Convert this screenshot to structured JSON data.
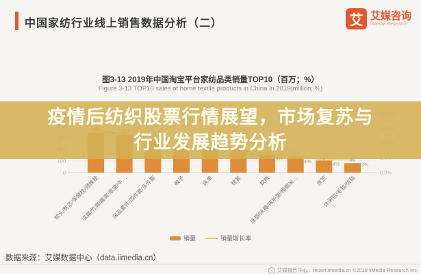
{
  "header": {
    "title": "中国家纺行业线上销售数据分析（二）",
    "accent_color": "#e4572e",
    "logo": {
      "mark": "艾",
      "name_cn": "艾媒咨询",
      "name_en": "iiMedia Research"
    }
  },
  "overlay": {
    "line1": "疫情后纺织股票行情展望，市场复苏与",
    "line2": "行业发展趋势分析",
    "band_color": "rgba(211,176,84,0.88)"
  },
  "chart_data": {
    "type": "bar",
    "title": "图3-13 2019年中国淘宝平台家纺品类销量TOP10（百万；%）",
    "subtitle": "Figure 3-13 TOP10 sales of home textile products in China in 2019(million; %)",
    "categories": [
      "枕头/枕芯/保健枕/颈椎枕",
      "凉席/竹席/藤席/草席/牛…",
      "床品套件/四件套/多件套",
      "被子",
      "床单",
      "枕套",
      "蚊帐",
      "床垫/床褥/床护垫/榻榻米…",
      "床笠",
      "休闲毯/毛毯/绒毯"
    ],
    "series": [
      {
        "name": "销量",
        "type": "bar",
        "color": "#e08c38",
        "values": [
          338,
          318,
          274,
          219,
          214,
          196,
          152,
          130,
          103,
          80
        ]
      },
      {
        "name": "销量增长率",
        "type": "line",
        "color": "#e8c95f",
        "values": [
          14.6,
          12.9,
          11.6,
          11.3,
          9.8,
          8.2,
          6.5,
          5.4,
          4.4,
          4.3
        ]
      }
    ],
    "y_left": {
      "ticks": [
        "0",
        "100",
        "200",
        "300",
        "400",
        "500"
      ],
      "min": 0,
      "max": 500
    },
    "y_right": {
      "ticks": [
        "0.0%",
        "5.0%",
        "10.0%",
        "15.0%",
        "20.0%"
      ],
      "min": 0,
      "max": 20
    },
    "legend_position": "bottom",
    "grid": "faint-horizontal"
  },
  "legend": {
    "items": [
      "销量",
      "销量增长率"
    ]
  },
  "footer": {
    "source": "数据来源：艾媒数据中心（data.iimedia.cn）",
    "right": "艾媒报告中心：report.iimedia.cn  ©2019  iiMedia Research Inc"
  }
}
